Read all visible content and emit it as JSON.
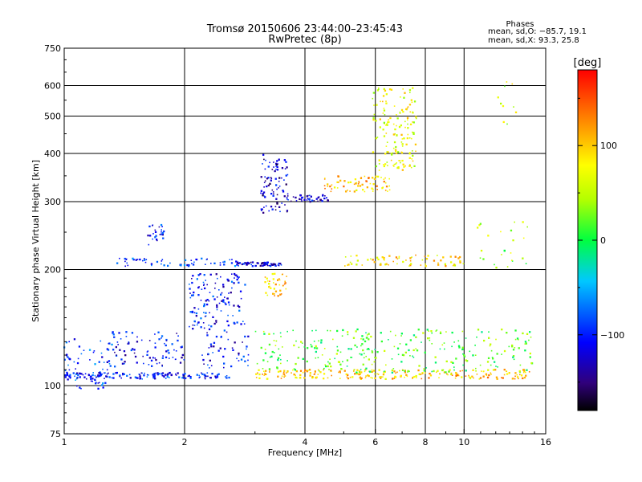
{
  "chart_data": {
    "type": "scatter",
    "title": "Tromsø 20150606 23:44:00–23:45:43",
    "subtitle": "RwPretec (8p)",
    "xlabel": "Frequency [MHz]",
    "ylabel": "Stationary phase Virtual Height [km]",
    "x_scale": "log",
    "y_scale": "log",
    "xlim": [
      1,
      16
    ],
    "ylim": [
      75,
      750
    ],
    "x_ticks": [
      1,
      2,
      4,
      6,
      8,
      10,
      16
    ],
    "y_ticks": [
      75,
      100,
      200,
      300,
      400,
      500,
      600,
      750
    ],
    "x_grid": [
      2,
      4,
      6,
      8,
      10
    ],
    "y_grid": [
      100,
      200,
      300,
      400,
      500,
      600
    ],
    "grid": true,
    "stats": {
      "heading": "Phases",
      "line1": "mean, sd,O: −85.7, 19.1",
      "line2": "mean, sd,X:  93.3, 25.8"
    },
    "colorbar": {
      "label": "[deg]",
      "range": [
        -180,
        180
      ],
      "ticks": [
        -100,
        0,
        100
      ],
      "tick_labels": [
        "−100",
        "0",
        "100"
      ]
    },
    "traces": [
      {
        "x_range": [
          1.0,
          1.32
        ],
        "y_range": [
          98,
          132
        ],
        "phase": -90,
        "n": 70
      },
      {
        "x_range": [
          1.0,
          2.6
        ],
        "y_range": [
          104,
          108
        ],
        "phase": -100,
        "n": 160
      },
      {
        "x_range": [
          1.3,
          2.0
        ],
        "y_range": [
          112,
          138
        ],
        "phase": -110,
        "n": 90
      },
      {
        "x_range": [
          1.35,
          2.7
        ],
        "y_range": [
          204,
          214
        ],
        "phase": -90,
        "n": 60
      },
      {
        "x_range": [
          1.62,
          1.78
        ],
        "y_range": [
          230,
          262
        ],
        "phase": -100,
        "n": 25
      },
      {
        "x_range": [
          2.05,
          2.85
        ],
        "y_range": [
          140,
          195
        ],
        "phase": -105,
        "n": 130
      },
      {
        "x_range": [
          2.2,
          2.9
        ],
        "y_range": [
          110,
          140
        ],
        "phase": -110,
        "n": 50
      },
      {
        "x_range": [
          2.7,
          3.5
        ],
        "y_range": [
          204,
          209
        ],
        "phase": -120,
        "n": 70
      },
      {
        "x_range": [
          3.15,
          3.6
        ],
        "y_range": [
          170,
          195
        ],
        "phase": 100,
        "n": 40
      },
      {
        "x_range": [
          3.1,
          3.65
        ],
        "y_range": [
          280,
          400
        ],
        "phase": -125,
        "n": 90
      },
      {
        "x_range": [
          3.6,
          4.6
        ],
        "y_range": [
          299,
          312
        ],
        "phase": -120,
        "n": 45
      },
      {
        "x_range": [
          4.4,
          6.6
        ],
        "y_range": [
          318,
          350
        ],
        "phase": 100,
        "n": 70
      },
      {
        "x_range": [
          5.9,
          7.6
        ],
        "y_range": [
          360,
          600
        ],
        "phase": 70,
        "n": 160
      },
      {
        "x_range": [
          3.0,
          14.6
        ],
        "y_range": [
          104,
          110
        ],
        "phase": 100,
        "n": 240
      },
      {
        "x_range": [
          3.0,
          14.8
        ],
        "y_range": [
          108,
          140
        ],
        "phase": 20,
        "n": 300
      },
      {
        "x_range": [
          5.0,
          10.0
        ],
        "y_range": [
          204,
          218
        ],
        "phase": 90,
        "n": 70
      },
      {
        "x_range": [
          10.5,
          14.5
        ],
        "y_range": [
          200,
          270
        ],
        "phase": 40,
        "n": 25
      },
      {
        "x_range": [
          12.0,
          14.0
        ],
        "y_range": [
          460,
          625
        ],
        "phase": 60,
        "n": 10
      }
    ]
  }
}
